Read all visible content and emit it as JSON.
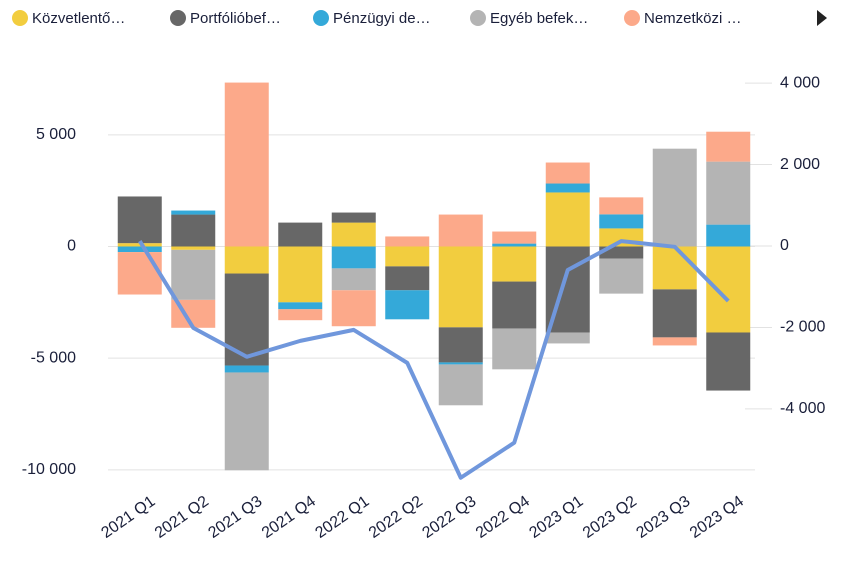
{
  "chart_data": {
    "type": "bar",
    "categories": [
      "2021 Q1",
      "2021 Q2",
      "2021 Q3",
      "2021 Q4",
      "2022 Q1",
      "2022 Q2",
      "2022 Q3",
      "2022 Q4",
      "2023 Q1",
      "2023 Q2",
      "2023 Q3",
      "2023 Q4"
    ],
    "series": [
      {
        "name": "Közvetlentő…",
        "color": "#f2cd3f",
        "values": [
          150,
          -150,
          -1210,
          -2500,
          1070,
          -890,
          -3620,
          -1570,
          2420,
          810,
          -1920,
          -3850
        ]
      },
      {
        "name": "Portfólióbef…",
        "color": "#676767",
        "values": [
          2090,
          1430,
          -4120,
          1070,
          450,
          -1070,
          -1570,
          -2100,
          -3850,
          -540,
          -2150,
          -2600
        ]
      },
      {
        "name": "Pénzügyi de…",
        "color": "#34a9d9",
        "values": [
          -250,
          180,
          -310,
          -310,
          -980,
          -1300,
          -90,
          130,
          400,
          630,
          0,
          980
        ]
      },
      {
        "name": "Egyéb befek…",
        "color": "#b4b4b4",
        "values": [
          0,
          -2240,
          -4380,
          0,
          -980,
          0,
          -1830,
          -1830,
          -490,
          -1570,
          4380,
          2820
        ]
      },
      {
        "name": "Nemzetközi …",
        "color": "#fca98a",
        "values": [
          -1900,
          -1250,
          7340,
          -490,
          -1610,
          450,
          1430,
          540,
          940,
          760,
          -360,
          1340
        ]
      },
      {
        "type": "line",
        "axis": "y2",
        "color": "#7097dc",
        "values": [
          120,
          -2010,
          -2720,
          -2330,
          -2060,
          -2870,
          -5690,
          -4830,
          -590,
          120,
          -20,
          -1350
        ]
      }
    ],
    "ylim": [
      -10500,
      7500
    ],
    "yticks": [
      {
        "value": -10000,
        "label": "-10 000"
      },
      {
        "value": -5000,
        "label": "-5 000"
      },
      0,
      {
        "value": 5000,
        "label": "5 000"
      }
    ],
    "y2lim": [
      -5770,
      4100
    ],
    "y2ticks": [
      {
        "value": -4000,
        "label": "-4 000"
      },
      {
        "value": -2000,
        "label": "-2 000"
      },
      0,
      {
        "value": 2000,
        "label": "2 000"
      },
      {
        "value": 4000,
        "label": "4 000"
      }
    ],
    "grid": true,
    "legend": "top"
  }
}
